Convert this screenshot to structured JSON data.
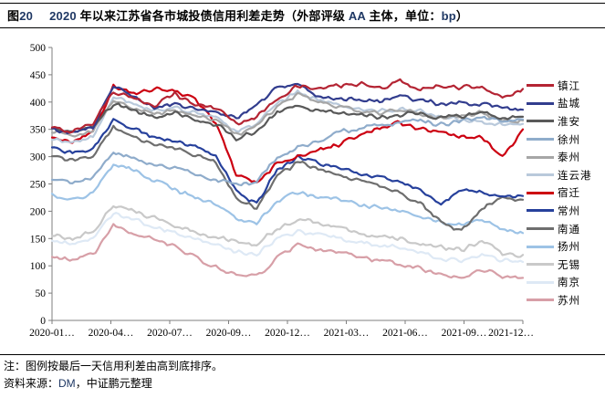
{
  "accent_navy": "#1F3864",
  "header": {
    "tag_segments": [
      {
        "text": "图",
        "color": "#000000"
      },
      {
        "text": "20",
        "color": "#1F3864"
      }
    ],
    "title_segments": [
      {
        "text": "2020 ",
        "color": "#1F3864"
      },
      {
        "text": "年以来江苏省各市城投债信用利差走势（外部评级 ",
        "color": "#000000"
      },
      {
        "text": "AA",
        "color": "#1F3864"
      },
      {
        "text": " 主体，单位：",
        "color": "#000000"
      },
      {
        "text": "bp",
        "color": "#1F3864"
      },
      {
        "text": "）",
        "color": "#000000"
      }
    ],
    "title_full": "图20 2020年以来江苏省各市城投债信用利差走势（外部评级AA主体，单位：bp）"
  },
  "notes": {
    "note": "注：图例按最后一天信用利差由高到底排序。",
    "source_segments": [
      {
        "text": "资料来源：",
        "color": "#000000"
      },
      {
        "text": "DM",
        "color": "#1F3864"
      },
      {
        "text": "，中证鹏元整理",
        "color": "#000000"
      }
    ],
    "source_full": "资料来源：DM，中证鹏元整理"
  },
  "chart_data": {
    "type": "line",
    "title": "2020年以来江苏省各市城投债信用利差走势（外部评级AA主体，单位：bp）",
    "xlabel": "",
    "ylabel": "",
    "unit": "bp",
    "ylim": [
      0,
      500
    ],
    "ytick_interval": 50,
    "grid": false,
    "legend_position": "right",
    "legend_note": "legend sorted by last-day credit spread, high to low",
    "x": [
      "2020-01",
      "2020-02",
      "2020-03",
      "2020-04",
      "2020-05",
      "2020-06",
      "2020-07",
      "2020-08",
      "2020-09",
      "2020-10",
      "2020-11",
      "2020-12",
      "2021-01",
      "2021-02",
      "2021-03",
      "2021-04",
      "2021-05",
      "2021-06",
      "2021-07",
      "2021-08",
      "2021-09",
      "2021-10",
      "2021-11",
      "2021-12"
    ],
    "x_axis_labels": [
      "2020-01…",
      "2020-04…",
      "2020-07…",
      "2020-09…",
      "2020-12…",
      "2021-03…",
      "2021-06…",
      "2021-09…",
      "2021-12…"
    ],
    "series": [
      {
        "name": "镇江",
        "color": "#B42433",
        "values": [
          352,
          346,
          362,
          420,
          405,
          395,
          415,
          395,
          390,
          362,
          372,
          408,
          428,
          424,
          430,
          433,
          425,
          438,
          424,
          429,
          425,
          431,
          405,
          424
        ]
      },
      {
        "name": "盐城",
        "color": "#323D8E",
        "values": [
          350,
          342,
          355,
          428,
          412,
          390,
          398,
          388,
          380,
          372,
          395,
          428,
          436,
          412,
          403,
          406,
          400,
          410,
          404,
          396,
          400,
          396,
          390,
          386
        ]
      },
      {
        "name": "淮安",
        "color": "#595959",
        "values": [
          352,
          344,
          352,
          398,
          382,
          372,
          380,
          368,
          360,
          332,
          348,
          380,
          392,
          386,
          380,
          376,
          372,
          376,
          380,
          370,
          374,
          380,
          370,
          373
        ]
      },
      {
        "name": "徐州",
        "color": "#8FACCB",
        "values": [
          258,
          250,
          262,
          308,
          296,
          285,
          280,
          268,
          258,
          248,
          255,
          300,
          315,
          330,
          345,
          352,
          358,
          362,
          366,
          358,
          366,
          372,
          364,
          368
        ]
      },
      {
        "name": "泰州",
        "color": "#A6A6A6",
        "values": [
          346,
          336,
          346,
          404,
          388,
          378,
          385,
          374,
          366,
          340,
          356,
          392,
          415,
          400,
          390,
          384,
          380,
          385,
          380,
          370,
          374,
          380,
          364,
          366
        ]
      },
      {
        "name": "连云港",
        "color": "#B9C9DB",
        "values": [
          332,
          326,
          336,
          412,
          396,
          384,
          390,
          380,
          372,
          346,
          362,
          398,
          418,
          404,
          394,
          388,
          384,
          388,
          384,
          374,
          368,
          364,
          358,
          360
        ]
      },
      {
        "name": "宿迁",
        "color": "#CC0011",
        "values": [
          336,
          328,
          346,
          428,
          415,
          425,
          420,
          408,
          360,
          268,
          254,
          288,
          302,
          312,
          322,
          340,
          352,
          362,
          350,
          345,
          338,
          334,
          300,
          350
        ]
      },
      {
        "name": "常州",
        "color": "#27419C",
        "values": [
          316,
          306,
          316,
          368,
          352,
          335,
          330,
          318,
          305,
          235,
          215,
          276,
          300,
          290,
          278,
          270,
          262,
          252,
          240,
          215,
          240,
          235,
          225,
          228
        ]
      },
      {
        "name": "南通",
        "color": "#6E6E6E",
        "values": [
          302,
          292,
          302,
          354,
          336,
          320,
          315,
          302,
          290,
          222,
          205,
          266,
          288,
          280,
          268,
          256,
          246,
          232,
          215,
          180,
          165,
          205,
          225,
          221
        ]
      },
      {
        "name": "扬州",
        "color": "#9DC3E6",
        "values": [
          232,
          222,
          232,
          288,
          275,
          255,
          240,
          225,
          215,
          186,
          176,
          218,
          235,
          228,
          222,
          212,
          206,
          200,
          190,
          180,
          174,
          186,
          168,
          160
        ]
      },
      {
        "name": "无锡",
        "color": "#C9C9C9",
        "values": [
          156,
          150,
          162,
          212,
          200,
          188,
          175,
          162,
          152,
          144,
          140,
          168,
          185,
          178,
          170,
          160,
          154,
          148,
          140,
          134,
          128,
          146,
          124,
          120
        ]
      },
      {
        "name": "南京",
        "color": "#DEE9F5",
        "values": [
          146,
          140,
          150,
          198,
          186,
          172,
          160,
          148,
          138,
          126,
          122,
          150,
          164,
          157,
          150,
          144,
          138,
          132,
          124,
          114,
          108,
          122,
          110,
          107
        ]
      },
      {
        "name": "苏州",
        "color": "#D79FA7",
        "values": [
          118,
          108,
          122,
          172,
          160,
          148,
          135,
          115,
          98,
          82,
          80,
          115,
          138,
          130,
          124,
          116,
          110,
          104,
          96,
          84,
          78,
          94,
          80,
          78
        ]
      }
    ]
  }
}
